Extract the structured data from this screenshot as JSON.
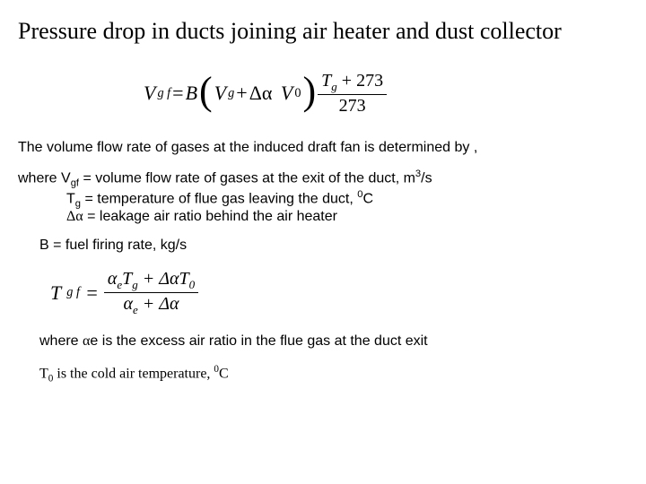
{
  "title": "Pressure drop in ducts joining air heater and dust collector",
  "eq1": {
    "lhs_V": "V",
    "lhs_sub": "g f",
    "eq": " = ",
    "B": "B",
    "Vg_V": "V",
    "Vg_sub": "g",
    "plus": " + ",
    "dalpha": "Δα",
    "V0_V": "V",
    "V0_sup": "0",
    "frac_num_T": "T",
    "frac_num_sub": "g",
    "frac_num_plus": " + 273",
    "frac_den": "273"
  },
  "line_intro": "The volume flow rate of gases at the induced draft fan is determined by ,",
  "defs": {
    "l1a": "where V",
    "l1a_sub": "gf",
    "l1b": " = volume flow rate of gases at the exit of the duct, m",
    "l1b_sup": "3",
    "l1c": "/s",
    "l2a": "T",
    "l2a_sub": "g",
    "l2b": " = temperature of flue gas leaving  the duct, ",
    "l2b_sup": "0",
    "l2c": "C",
    "l3a": "Δα",
    "l3b": " = leakage air ratio behind the air heater"
  },
  "b_line": "B = fuel firing rate, kg/s",
  "eq2": {
    "lhs_T": "T",
    "lhs_sub": "g f",
    "eq": " = ",
    "num_a": "α",
    "num_a_sub": "e",
    "num_T": "T",
    "num_T_sub": "g",
    "num_plus": " + ",
    "num_da": "Δα",
    "num_T0": "T",
    "num_T0_sub": "0",
    "den_a": "α",
    "den_a_sub": "e",
    "den_plus": " + ",
    "den_da": "Δα"
  },
  "where2a": "where ",
  "where2_alpha": "α",
  "where2b": "e is the excess air ratio in the flue gas at the duct exit",
  "t0_a": "T",
  "t0_sub": "0",
  "t0_b": " is the cold air temperature, ",
  "t0_sup": "0",
  "t0_c": "C"
}
